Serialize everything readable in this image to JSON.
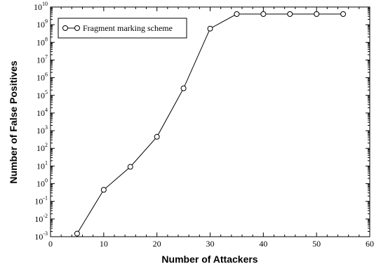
{
  "chart_data": {
    "type": "line",
    "xlabel": "Number of Attackers",
    "ylabel": "Number of False Positives",
    "xlim": [
      0,
      60
    ],
    "ylim": [
      0.001,
      10000000000
    ],
    "yscale": "log",
    "xticks": [
      0,
      10,
      20,
      30,
      40,
      50,
      60
    ],
    "yticks": [
      {
        "base": "10",
        "exp": "-3"
      },
      {
        "base": "10",
        "exp": "-2"
      },
      {
        "base": "10",
        "exp": "-1"
      },
      {
        "base": "10",
        "exp": "0"
      },
      {
        "base": "10",
        "exp": "1"
      },
      {
        "base": "10",
        "exp": "2"
      },
      {
        "base": "10",
        "exp": "3"
      },
      {
        "base": "10",
        "exp": "4"
      },
      {
        "base": "10",
        "exp": "5"
      },
      {
        "base": "10",
        "exp": "6"
      },
      {
        "base": "10",
        "exp": "7"
      },
      {
        "base": "10",
        "exp": "8"
      },
      {
        "base": "10",
        "exp": "9"
      },
      {
        "base": "10",
        "exp": "10"
      }
    ],
    "grid": false,
    "legend_position": "top-left",
    "series": [
      {
        "name": "Fragment marking scheme",
        "marker": "open-circle",
        "color": "#000000",
        "x": [
          5,
          10,
          15,
          20,
          25,
          30,
          35,
          40,
          45,
          50,
          55
        ],
        "y": [
          0.0015,
          0.45,
          9,
          450,
          250000,
          600000000,
          4000000000,
          4000000000,
          4000000000,
          4000000000,
          4000000000
        ]
      }
    ]
  }
}
